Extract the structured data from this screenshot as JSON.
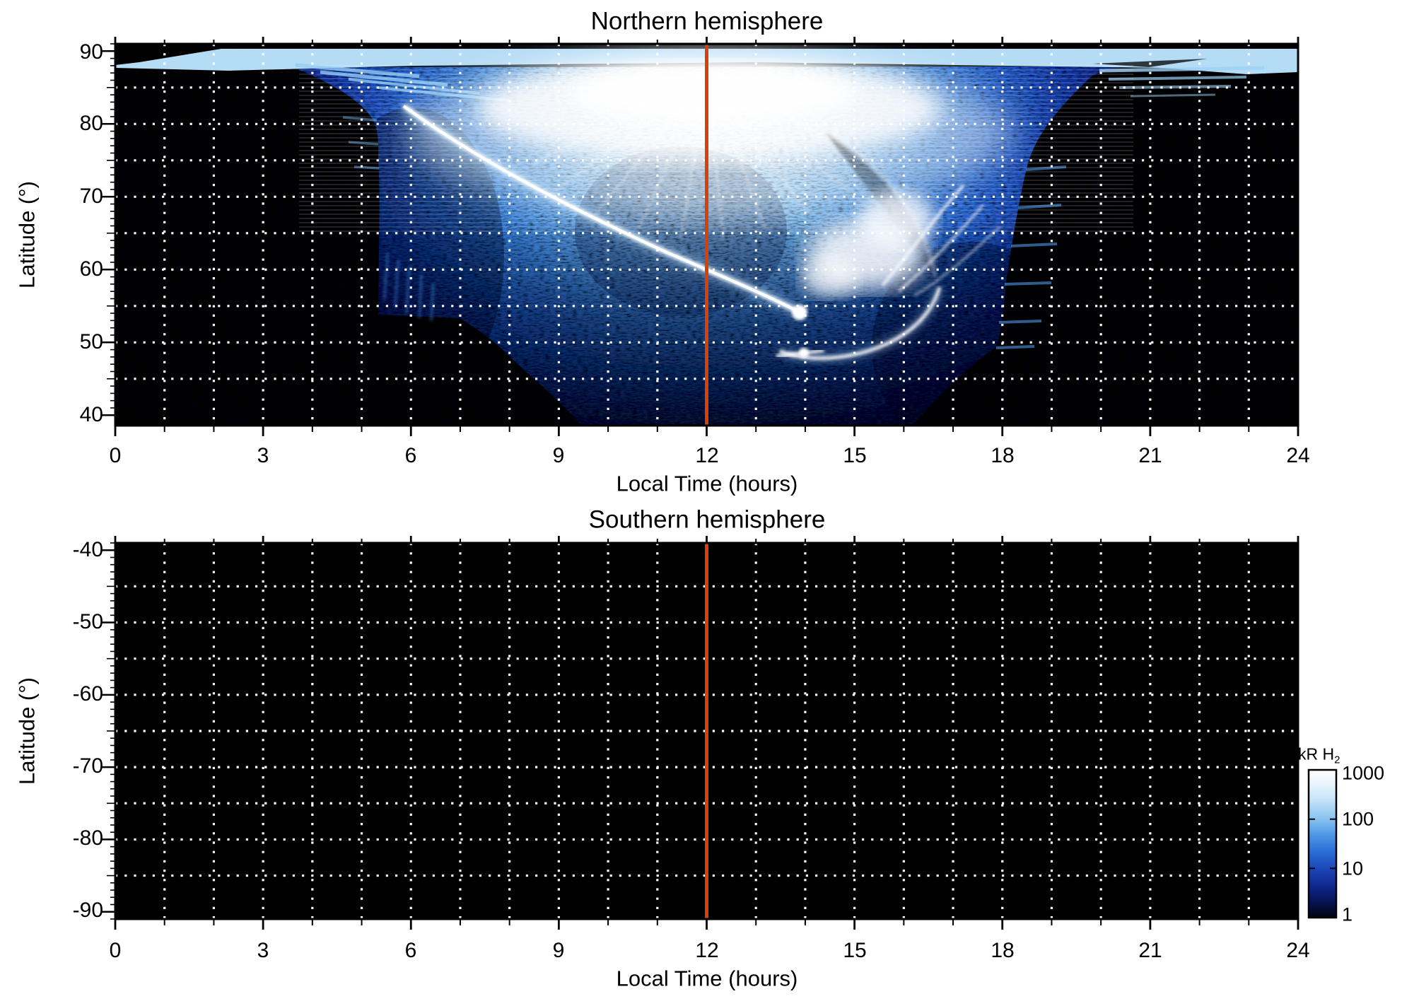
{
  "north": {
    "title": "Northern hemisphere",
    "ylabel": "Latitude (°)",
    "xlabel": "Local Time (hours)",
    "yticks": [
      "90",
      "80",
      "70",
      "60",
      "50",
      "40"
    ]
  },
  "south": {
    "title": "Southern hemisphere",
    "ylabel": "Latitude (°)",
    "xlabel": "Local Time (hours)",
    "yticks": [
      "-40",
      "-50",
      "-60",
      "-70",
      "-80",
      "-90"
    ]
  },
  "xticks": [
    "0",
    "3",
    "6",
    "9",
    "12",
    "15",
    "18",
    "21",
    "24"
  ],
  "colorbar": {
    "title_main": "kR H",
    "title_sub": "2",
    "ticks": [
      "1000",
      "100",
      "10",
      "1"
    ]
  },
  "noon_marker": {
    "hour": 12,
    "color": "#d54108"
  },
  "colors": {
    "background": "#ffffff",
    "no_data": "#000000",
    "grid": "#ffffff",
    "axis": "#000000",
    "intensity_low": "#01040f",
    "intensity_mid": "#2a6bd6",
    "intensity_high": "#ffffff"
  },
  "chart_data": {
    "type": "heatmap",
    "quantity": "H2 emission brightness",
    "unit": "kR",
    "color_scale": {
      "type": "log",
      "range": [
        1,
        1000
      ],
      "ticks": [
        1000,
        100,
        10,
        1
      ],
      "low_color": "black",
      "mid_color": "blue",
      "high_color": "white"
    },
    "grid": {
      "style": "white dotted",
      "vertical_every_hours": 1,
      "horizontal_every_degrees": 5
    },
    "noon_line_hour": 12,
    "panels": [
      {
        "title": "Northern hemisphere",
        "x": {
          "label": "Local Time (hours)",
          "range": [
            0,
            24
          ],
          "ticks": [
            0,
            3,
            6,
            9,
            12,
            15,
            18,
            21,
            24
          ]
        },
        "y": {
          "label": "Latitude (°)",
          "range": [
            40,
            90
          ],
          "ticks": [
            90,
            80,
            70,
            60,
            50,
            40
          ]
        },
        "features": [
          {
            "name": "polar-cap-band",
            "local_time": [
              0,
              24
            ],
            "latitude": [
              88,
              90.5
            ],
            "intensity_kR": 300
          },
          {
            "name": "dayside-cusp-glow",
            "local_time": [
              9,
              15.5
            ],
            "latitude": [
              80,
              89
            ],
            "intensity_kR": 1000
          },
          {
            "name": "main-auroral-arc",
            "path_lt_lat": [
              [
                6,
                82
              ],
              [
                8,
                76
              ],
              [
                10,
                68
              ],
              [
                12,
                61.5
              ],
              [
                13.5,
                57
              ],
              [
                14,
                55
              ]
            ],
            "intensity_kR": 800
          },
          {
            "name": "afternoon-surge-and-hook",
            "local_time": [
              13.5,
              16.5
            ],
            "latitude": [
              50,
              68
            ],
            "intensity_kR": 900
          },
          {
            "name": "equatorward-bright-spot",
            "local_time": 14.0,
            "latitude": 49.5,
            "intensity_kR": 700
          },
          {
            "name": "diffuse-speckled-oval",
            "local_time": [
              5.3,
              18.3
            ],
            "latitude": [
              40,
              88
            ],
            "intensity_kR": 30
          },
          {
            "name": "no-data-black",
            "regions": [
              "0-5.3 h below 87 deg",
              "18.3-24 h below 86 deg",
              "below 55 deg before 9.5 h",
              "dome 16.2-19 h below 52 deg"
            ],
            "intensity_kR": 1
          }
        ]
      },
      {
        "title": "Southern hemisphere",
        "x": {
          "label": "Local Time (hours)",
          "range": [
            0,
            24
          ],
          "ticks": [
            0,
            3,
            6,
            9,
            12,
            15,
            18,
            21,
            24
          ]
        },
        "y": {
          "label": "Latitude (°)",
          "range": [
            -90,
            -40
          ],
          "ticks": [
            -40,
            -50,
            -60,
            -70,
            -80,
            -90
          ]
        },
        "features": [
          {
            "name": "no-data",
            "regions": [
              "entire panel"
            ],
            "intensity_kR": 1
          }
        ]
      }
    ]
  }
}
